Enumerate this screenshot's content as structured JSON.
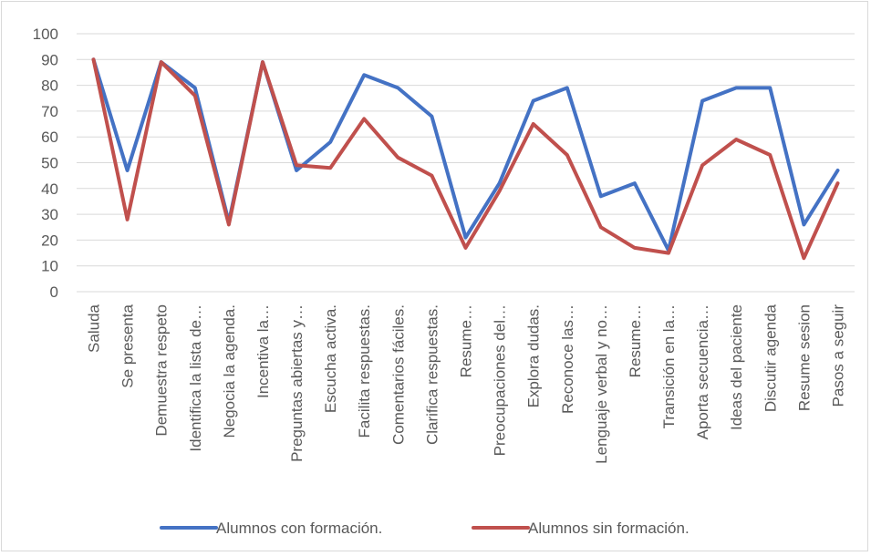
{
  "chart_data": {
    "type": "line",
    "title": "",
    "xlabel": "",
    "ylabel": "",
    "ylim": [
      0,
      100
    ],
    "yticks": [
      0,
      10,
      20,
      30,
      40,
      50,
      60,
      70,
      80,
      90,
      100
    ],
    "grid": true,
    "legend_position": "bottom",
    "categories": [
      "Saluda",
      "Se presenta",
      "Demuestra respeto",
      "Identifica la lista de…",
      "Negocia la agenda.",
      "Incentiva la…",
      "Preguntas abiertas y…",
      "Escucha activa.",
      "Facilita respuestas.",
      "Comentarios fáciles.",
      "Clarifica respuestas.",
      "Resume…",
      "Preocupaciones del…",
      "Explora dudas.",
      "Reconoce las…",
      "Lenguaje verbal y no…",
      "Resume…",
      "Transición en la…",
      "Aporta secuencia…",
      "Ideas del paciente",
      "Discutir agenda",
      "Resume sesion",
      "Pasos a seguir"
    ],
    "series": [
      {
        "name": "Alumnos con formación.",
        "color": "#4472c4",
        "values": [
          90,
          47,
          89,
          79,
          27,
          89,
          47,
          58,
          84,
          79,
          68,
          21,
          42,
          74,
          79,
          37,
          42,
          16,
          74,
          79,
          79,
          26,
          47
        ]
      },
      {
        "name": "Alumnos sin formación.",
        "color": "#c0504d",
        "values": [
          90,
          28,
          89,
          76,
          26,
          89,
          49,
          48,
          67,
          52,
          45,
          17,
          39,
          65,
          53,
          25,
          17,
          15,
          49,
          59,
          53,
          13,
          42
        ]
      }
    ]
  }
}
